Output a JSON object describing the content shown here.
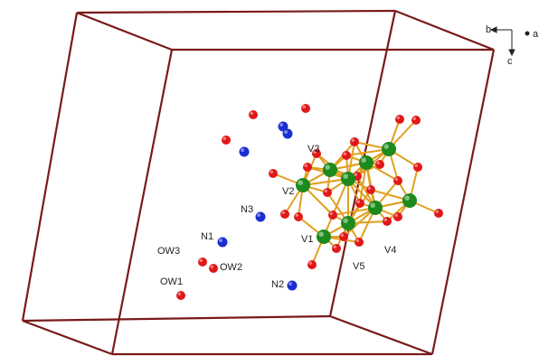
{
  "atom_labels": [
    "V3",
    "V2",
    "V1",
    "V5",
    "V4",
    "N3",
    "N1",
    "N2",
    "OW3",
    "OW2",
    "OW1"
  ],
  "axis_labels": {
    "b": "b",
    "a": "a",
    "c": "c"
  }
}
